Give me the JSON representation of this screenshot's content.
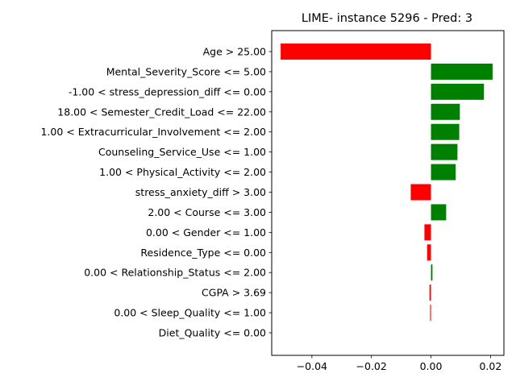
{
  "chart_data": {
    "type": "bar",
    "orientation": "horizontal",
    "title": "LIME- instance 5296 - Pred: 3",
    "xlabel": "",
    "ylabel": "",
    "xlim": [
      -0.0535,
      0.0245
    ],
    "xticks": [
      -0.04,
      -0.02,
      0.0,
      0.02
    ],
    "xtick_labels": [
      "−0.04",
      "−0.02",
      "0.00",
      "0.02"
    ],
    "positive_color": "#008000",
    "negative_color": "#ff0000",
    "grid": false,
    "categories": [
      "Age > 25.00",
      "Mental_Severity_Score <= 5.00",
      "-1.00 < stress_depression_diff <= 0.00",
      "18.00 < Semester_Credit_Load <= 22.00",
      "1.00 < Extracurricular_Involvement <= 2.00",
      "Counseling_Service_Use <= 1.00",
      "1.00 < Physical_Activity <= 2.00",
      "stress_anxiety_diff > 3.00",
      "2.00 < Course <= 3.00",
      "0.00 < Gender <= 1.00",
      "Residence_Type <= 0.00",
      "0.00 < Relationship_Status <= 2.00",
      "CGPA > 3.69",
      "0.00 < Sleep_Quality <= 1.00",
      "Diet_Quality <= 0.00"
    ],
    "values": [
      -0.0505,
      0.0207,
      0.0178,
      0.0097,
      0.0095,
      0.0089,
      0.0083,
      -0.0068,
      0.0051,
      -0.0022,
      -0.0013,
      0.0005,
      -0.0005,
      -0.0003,
      0.0
    ]
  }
}
